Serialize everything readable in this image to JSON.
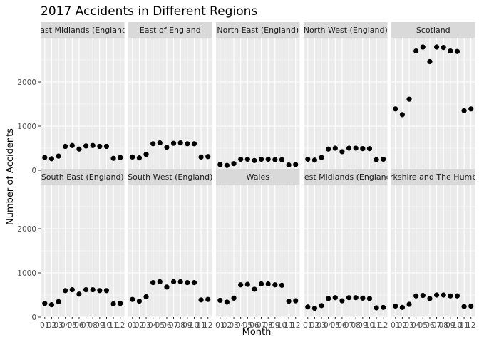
{
  "chart_data": {
    "type": "scatter",
    "title": "2017 Accidents in Different Regions",
    "xlabel": "Month",
    "ylabel": "Number of Accidents",
    "x": [
      1,
      2,
      3,
      4,
      5,
      6,
      7,
      8,
      9,
      10,
      11,
      12
    ],
    "x_ticklabels": [
      "01",
      "02",
      "03",
      "04",
      "05",
      "06",
      "07",
      "08",
      "09",
      "10",
      "11",
      "12"
    ],
    "y_ticks": [
      0,
      1000,
      2000
    ],
    "y_ticklabels": [
      "0",
      "1000",
      "2000"
    ],
    "ylim": [
      0,
      3000
    ],
    "grid": true,
    "facets": [
      {
        "region": "East Midlands (England)",
        "values": [
          290,
          260,
          320,
          540,
          560,
          480,
          550,
          560,
          540,
          540,
          270,
          290
        ]
      },
      {
        "region": "East of England",
        "values": [
          300,
          280,
          360,
          600,
          620,
          520,
          610,
          620,
          600,
          600,
          300,
          310
        ]
      },
      {
        "region": "North East (England)",
        "values": [
          130,
          110,
          150,
          250,
          250,
          220,
          250,
          250,
          240,
          240,
          120,
          130
        ]
      },
      {
        "region": "North West (England)",
        "values": [
          250,
          230,
          290,
          480,
          500,
          420,
          500,
          500,
          490,
          490,
          240,
          250
        ]
      },
      {
        "region": "Scotland",
        "values": [
          1390,
          1260,
          1610,
          2700,
          2790,
          2460,
          2790,
          2780,
          2700,
          2690,
          1350,
          1390
        ]
      },
      {
        "region": "South East (England)",
        "values": [
          310,
          280,
          350,
          600,
          620,
          520,
          620,
          620,
          600,
          600,
          300,
          310
        ]
      },
      {
        "region": "South West (England)",
        "values": [
          400,
          360,
          460,
          780,
          800,
          680,
          800,
          800,
          780,
          780,
          390,
          400
        ]
      },
      {
        "region": "Wales",
        "values": [
          380,
          340,
          430,
          730,
          740,
          630,
          750,
          750,
          730,
          720,
          360,
          370
        ]
      },
      {
        "region": "West Midlands (England)",
        "values": [
          230,
          200,
          260,
          420,
          440,
          370,
          440,
          440,
          430,
          420,
          210,
          220
        ]
      },
      {
        "region": "Yorkshire and The Humber",
        "values": [
          250,
          220,
          290,
          480,
          490,
          420,
          500,
          500,
          480,
          480,
          240,
          250
        ]
      }
    ]
  }
}
